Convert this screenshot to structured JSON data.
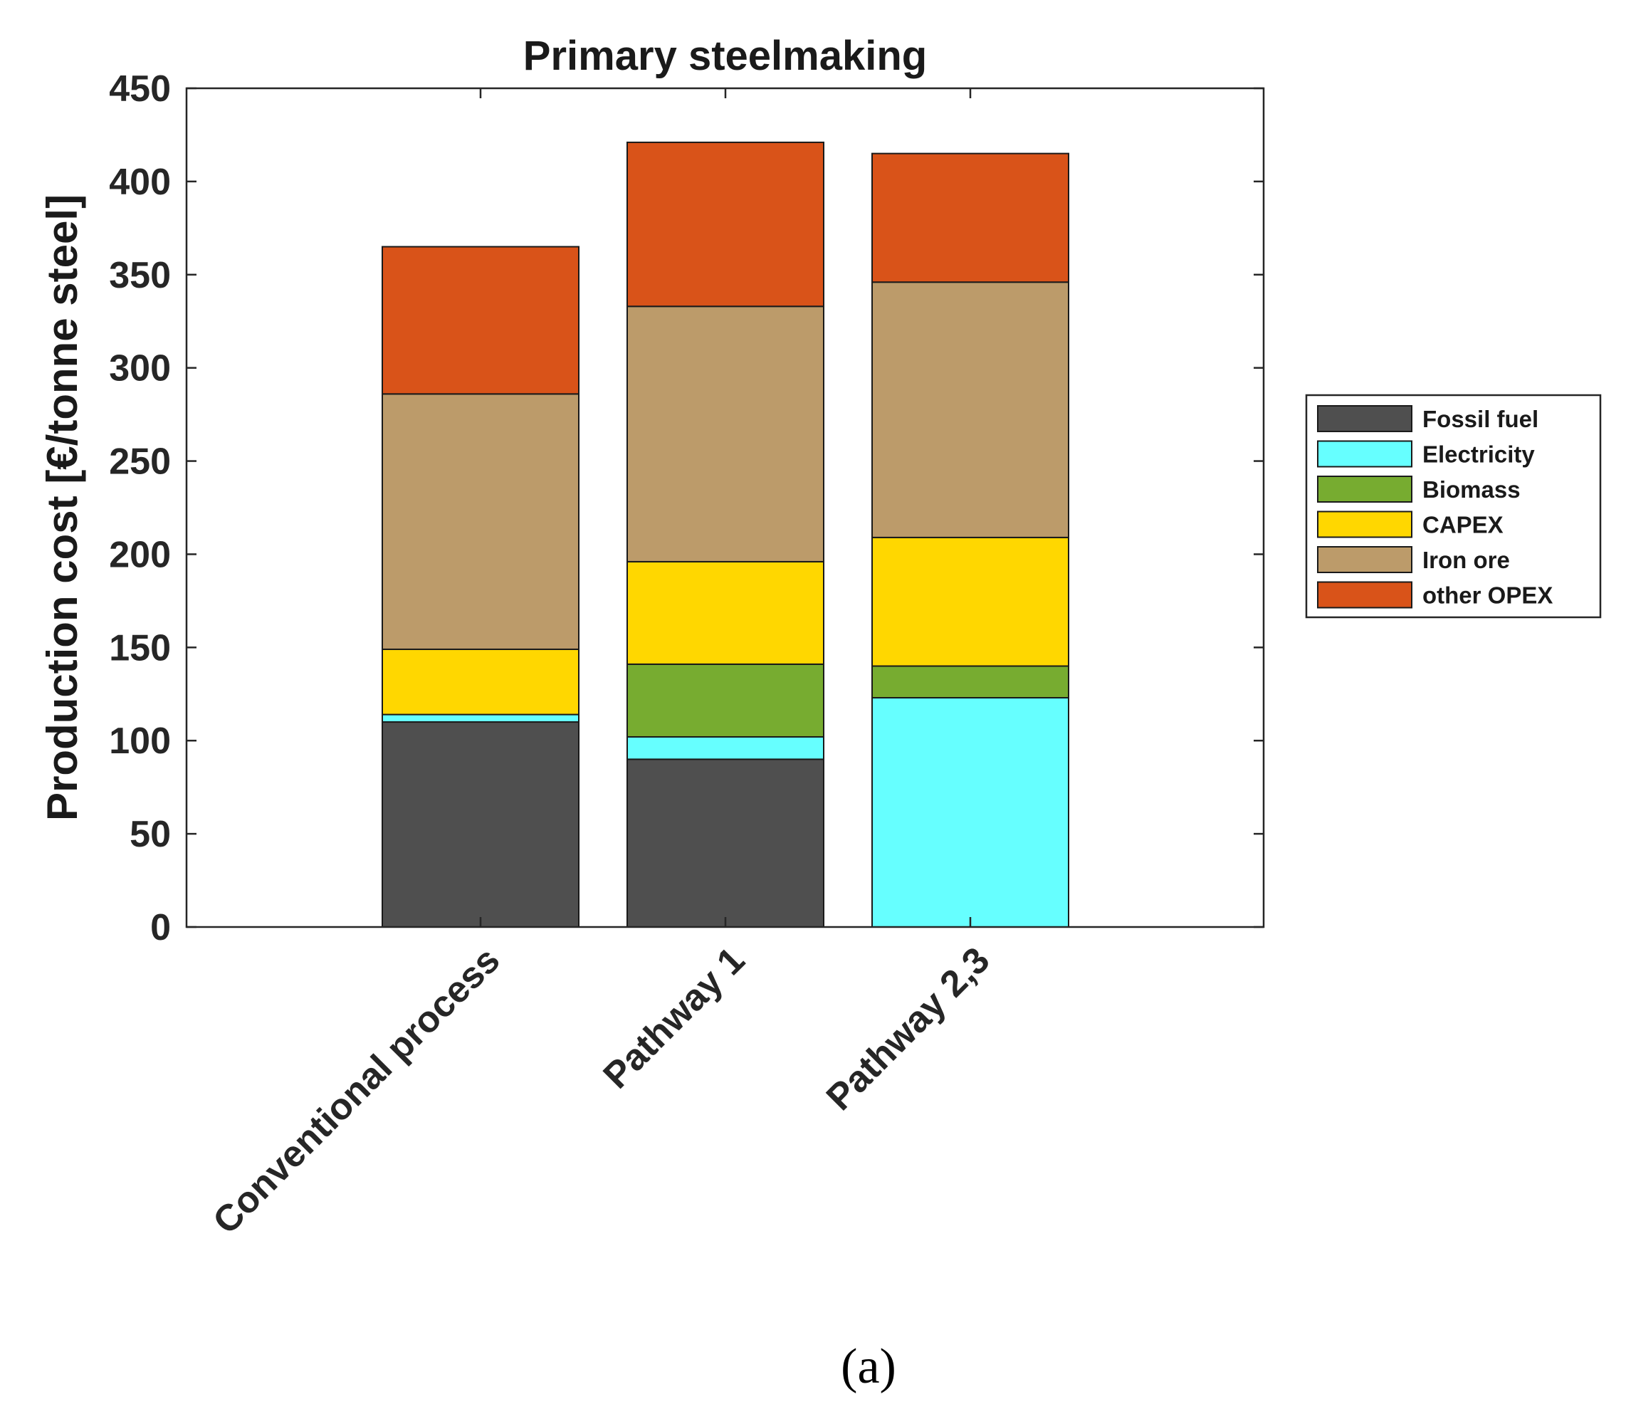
{
  "chart_data": {
    "type": "bar",
    "stacked": true,
    "title": "Primary steelmaking",
    "xlabel": "",
    "ylabel": "Production cost [€/tonne steel]",
    "ylim": [
      0,
      450
    ],
    "yticks": [
      0,
      50,
      100,
      150,
      200,
      250,
      300,
      350,
      400,
      450
    ],
    "categories": [
      "Conventional process",
      "Pathway 1",
      "Pathway 2,3"
    ],
    "series": [
      {
        "name": "Fossil fuel",
        "color": "#4f4f4f",
        "values": [
          110,
          90,
          0
        ]
      },
      {
        "name": "Electricity",
        "color": "#66ffff",
        "values": [
          4,
          12,
          123
        ]
      },
      {
        "name": "Biomass",
        "color": "#77ac30",
        "values": [
          0,
          39,
          17
        ]
      },
      {
        "name": "CAPEX",
        "color": "#ffd700",
        "values": [
          35,
          55,
          69
        ]
      },
      {
        "name": "Iron ore",
        "color": "#bc9b6a",
        "values": [
          137,
          137,
          137
        ]
      },
      {
        "name": "other OPEX",
        "color": "#d95319",
        "values": [
          79,
          88,
          69
        ]
      }
    ],
    "legend_position": "right"
  },
  "caption": "(a)"
}
